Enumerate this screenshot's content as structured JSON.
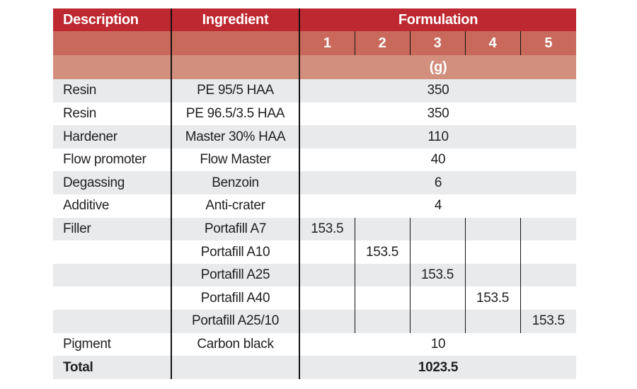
{
  "colors": {
    "header_red": "#be2830",
    "subheader_red": "#c8695c",
    "unit_row_red": "#d28f7e",
    "row_gray": "#e9eaec",
    "header_text": "#ffffff",
    "body_text": "#1f1f1f"
  },
  "chart_data": {
    "type": "table",
    "header": {
      "description_label": "Description",
      "ingredient_label": "Ingredient",
      "formulation_label": "Formulation",
      "formulation_columns": [
        "1",
        "2",
        "3",
        "4",
        "5"
      ],
      "unit_label": "(g)"
    },
    "rows": [
      {
        "description": "Resin",
        "ingredient": "PE 95/5 HAA",
        "all_formulations": "350"
      },
      {
        "description": "Resin",
        "ingredient": "PE 96.5/3.5 HAA",
        "all_formulations": "350"
      },
      {
        "description": "Hardener",
        "ingredient": "Master 30% HAA",
        "all_formulations": "110"
      },
      {
        "description": "Flow promoter",
        "ingredient": "Flow Master",
        "all_formulations": "40"
      },
      {
        "description": "Degassing",
        "ingredient": "Benzoin",
        "all_formulations": "6"
      },
      {
        "description": "Additive",
        "ingredient": "Anti-crater",
        "all_formulations": "4"
      },
      {
        "description": "Filler",
        "ingredient": "Portafill A7",
        "values": [
          "153.5",
          "",
          "",
          "",
          ""
        ]
      },
      {
        "description": "",
        "ingredient": "Portafill A10",
        "values": [
          "",
          "153.5",
          "",
          "",
          ""
        ]
      },
      {
        "description": "",
        "ingredient": "Portafill A25",
        "values": [
          "",
          "",
          "153.5",
          "",
          ""
        ]
      },
      {
        "description": "",
        "ingredient": "Portafill A40",
        "values": [
          "",
          "",
          "",
          "153.5",
          ""
        ]
      },
      {
        "description": "",
        "ingredient": "Portafill A25/10",
        "values": [
          "",
          "",
          "",
          "",
          "153.5"
        ]
      },
      {
        "description": "Pigment",
        "ingredient": "Carbon black",
        "all_formulations": "10"
      },
      {
        "description": "Total",
        "ingredient": "",
        "all_formulations": "1023.5",
        "bold": true
      }
    ]
  }
}
